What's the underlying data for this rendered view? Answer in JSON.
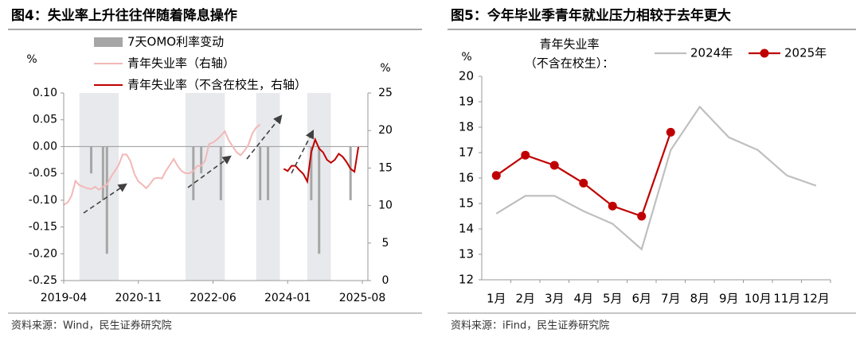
{
  "chart_data": [
    {
      "type": "combo",
      "title": "图4：失业率上升往往伴随着降息操作",
      "source": "资料来源：Wind，民生证券研究院",
      "ylabel": "%",
      "y2label": "%",
      "x": [
        "2019-04",
        "2019-05",
        "2019-06",
        "2019-07",
        "2019-08",
        "2019-09",
        "2019-10",
        "2019-11",
        "2019-12",
        "2020-01",
        "2020-02",
        "2020-03",
        "2020-04",
        "2020-05",
        "2020-06",
        "2020-07",
        "2020-08",
        "2020-09",
        "2020-10",
        "2020-11",
        "2020-12",
        "2021-01",
        "2021-02",
        "2021-03",
        "2021-04",
        "2021-05",
        "2021-06",
        "2021-07",
        "2021-08",
        "2021-09",
        "2021-10",
        "2021-11",
        "2021-12",
        "2022-01",
        "2022-02",
        "2022-03",
        "2022-04",
        "2022-05",
        "2022-06",
        "2022-07",
        "2022-08",
        "2022-09",
        "2022-10",
        "2022-11",
        "2022-12",
        "2023-01",
        "2023-02",
        "2023-03",
        "2023-04",
        "2023-05",
        "2023-06",
        "2023-07",
        "2023-08",
        "2023-09",
        "2023-10",
        "2023-11",
        "2023-12",
        "2024-01",
        "2024-02",
        "2024-03",
        "2024-04",
        "2024-05",
        "2024-06",
        "2024-07",
        "2024-08",
        "2024-09",
        "2024-10",
        "2024-11",
        "2024-12",
        "2025-01",
        "2025-02",
        "2025-03",
        "2025-04",
        "2025-05",
        "2025-06",
        "2025-07",
        "2025-08"
      ],
      "xticks": [
        "2019-04",
        "2020-11",
        "2022-06",
        "2024-01",
        "2025-08"
      ],
      "shaded_periods": [
        [
          "2019-08",
          "2020-06"
        ],
        [
          "2021-11",
          "2022-09"
        ],
        [
          "2023-05",
          "2023-11"
        ],
        [
          "2024-06",
          "2024-12"
        ]
      ],
      "shade_color": "#e8e9ec",
      "ylim": [
        -0.25,
        0.1
      ],
      "yticks": [
        {
          "value": 0.1,
          "label": "0.10"
        },
        0.05,
        {
          "value": 0,
          "label": "0.00"
        },
        -0.05,
        {
          "value": -0.1,
          "label": "-0.10"
        },
        -0.15,
        {
          "value": -0.2,
          "label": "-0.20"
        },
        -0.25
      ],
      "y2lim": [
        0,
        25
      ],
      "y2ticks": [
        0,
        5,
        10,
        15,
        20,
        25
      ],
      "series": [
        {
          "name": "7天OMO利率变动",
          "type": "bar",
          "color": "#a6a6a6",
          "axis": "y",
          "values": [
            null,
            null,
            null,
            null,
            null,
            null,
            null,
            -0.05,
            null,
            null,
            -0.1,
            -0.2,
            null,
            null,
            null,
            null,
            null,
            null,
            null,
            null,
            null,
            null,
            null,
            null,
            null,
            null,
            null,
            null,
            null,
            null,
            null,
            null,
            null,
            -0.1,
            null,
            -0.05,
            null,
            null,
            null,
            null,
            -0.1,
            null,
            null,
            null,
            null,
            null,
            null,
            null,
            null,
            null,
            -0.1,
            null,
            -0.1,
            null,
            null,
            null,
            null,
            null,
            null,
            null,
            null,
            null,
            null,
            -0.1,
            null,
            -0.2,
            null,
            null,
            null,
            null,
            null,
            null,
            null,
            -0.1,
            null,
            null,
            null
          ]
        },
        {
          "name": "青年失业率（右轴）",
          "type": "line",
          "color": "#f2b8b8",
          "axis": "y2",
          "values": [
            10.1,
            10.4,
            11.3,
            13.3,
            12.7,
            12.5,
            12.3,
            12.2,
            12.5,
            12.1,
            12.5,
            12.8,
            13.8,
            14.6,
            15.4,
            16.8,
            16.8,
            15.9,
            14.2,
            13.2,
            12.8,
            12.3,
            12.9,
            13.6,
            13.7,
            13.6,
            14.6,
            15.4,
            16.2,
            15.3,
            14.6,
            14.3,
            14.3,
            14.6,
            15.3,
            15.3,
            16.0,
            18.2,
            18.4,
            18.8,
            19.3,
            19.9,
            18.7,
            17.9,
            17.1,
            16.7,
            17.3,
            18.1,
            19.6,
            20.4,
            20.8,
            null,
            null,
            null,
            null,
            null,
            null,
            null,
            null,
            null,
            null,
            null,
            null,
            null,
            null,
            null,
            null,
            null,
            null,
            null,
            null,
            null,
            null,
            null,
            null,
            null,
            null
          ]
        },
        {
          "name": "青年失业率（不含在校生，右轴）",
          "type": "line",
          "color": "#c00000",
          "axis": "y2",
          "values": [
            null,
            null,
            null,
            null,
            null,
            null,
            null,
            null,
            null,
            null,
            null,
            null,
            null,
            null,
            null,
            null,
            null,
            null,
            null,
            null,
            null,
            null,
            null,
            null,
            null,
            null,
            null,
            null,
            null,
            null,
            null,
            null,
            null,
            null,
            null,
            null,
            null,
            null,
            null,
            null,
            null,
            null,
            null,
            null,
            null,
            null,
            null,
            null,
            null,
            null,
            null,
            null,
            null,
            null,
            null,
            null,
            14.9,
            14.6,
            15.3,
            15.3,
            14.7,
            14.2,
            13.2,
            17.1,
            18.8,
            17.6,
            17.1,
            16.1,
            15.7,
            16.1,
            16.9,
            16.5,
            15.8,
            14.9,
            14.5,
            17.8,
            null
          ]
        }
      ]
    },
    {
      "type": "line",
      "title": "图5：今年毕业季青年就业压力相较于去年更大",
      "source": "资料来源：iFind，民生证券研究院",
      "ylabel": "%",
      "annotation": [
        "青年失业率",
        "（不含在校生）："
      ],
      "categories": [
        "1月",
        "2月",
        "3月",
        "4月",
        "5月",
        "6月",
        "7月",
        "8月",
        "9月",
        "10月",
        "11月",
        "12月"
      ],
      "ylim": [
        12,
        20
      ],
      "yticks": [
        12,
        13,
        14,
        15,
        16,
        17,
        18,
        19,
        20
      ],
      "series": [
        {
          "name": "2024年",
          "color": "#bfbfbf",
          "marker": false,
          "values": [
            14.6,
            15.3,
            15.3,
            14.7,
            14.2,
            13.2,
            17.1,
            18.8,
            17.6,
            17.1,
            16.1,
            15.7
          ]
        },
        {
          "name": "2025年",
          "color": "#c00000",
          "marker": true,
          "values": [
            16.1,
            16.9,
            16.5,
            15.8,
            14.9,
            14.5,
            17.8,
            null,
            null,
            null,
            null,
            null
          ]
        }
      ]
    }
  ]
}
